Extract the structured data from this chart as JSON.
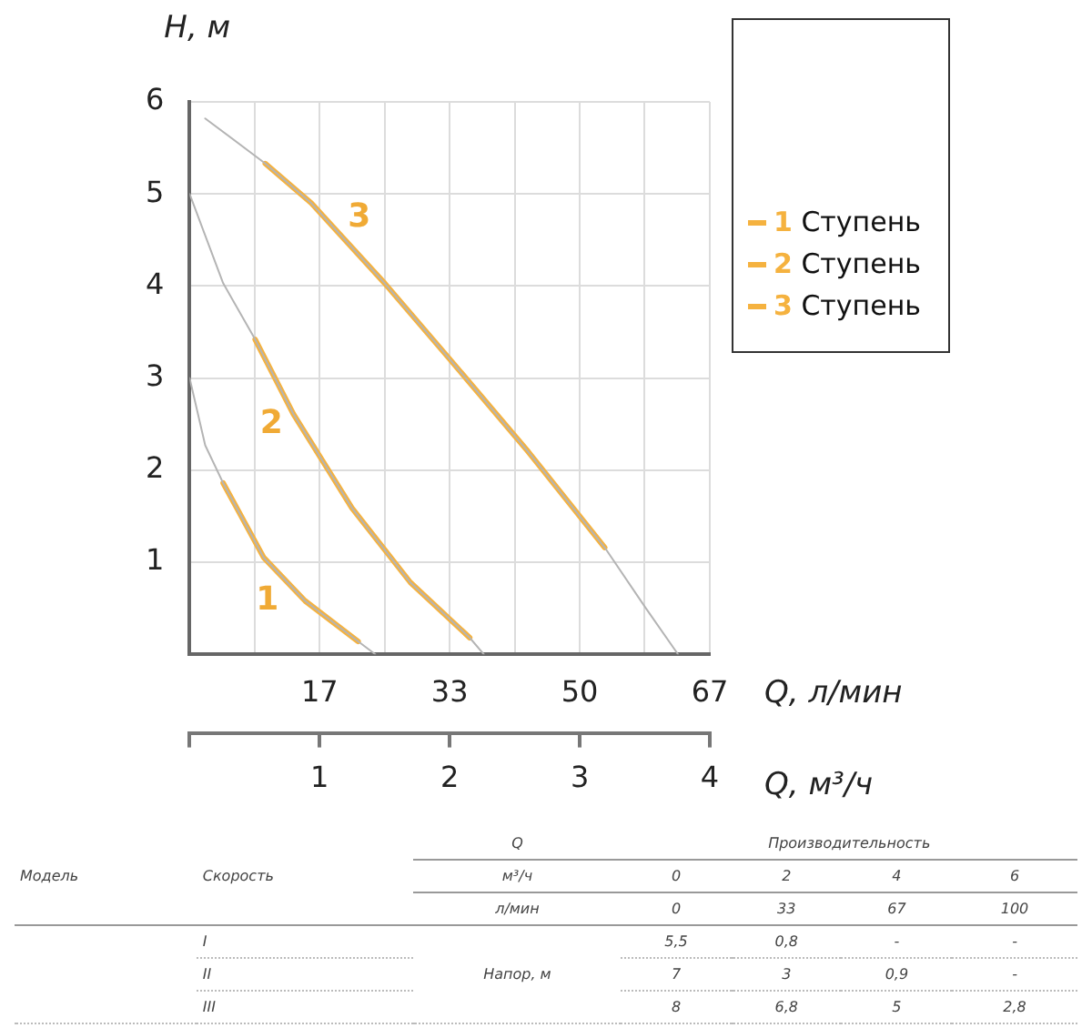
{
  "chart_data": {
    "type": "line",
    "xlabel": "Q, л/мин",
    "x2label": "Q, м³/ч",
    "ylabel": "H, м",
    "xlim": [
      0,
      66.67
    ],
    "xticks": [
      {
        "value": 0,
        "label": null
      },
      {
        "value": 8.33,
        "label": null
      },
      {
        "value": 16.67,
        "label": "17"
      },
      {
        "value": 25,
        "label": null
      },
      {
        "value": 33.33,
        "label": "33"
      },
      {
        "value": 41.67,
        "label": null
      },
      {
        "value": 50,
        "label": "50"
      },
      {
        "value": 58.33,
        "label": null
      },
      {
        "value": 66.67,
        "label": "67"
      }
    ],
    "x2lim": [
      0,
      4
    ],
    "x2ticks": [
      {
        "value": 0,
        "label": null
      },
      1,
      2,
      3,
      4
    ],
    "ylim": [
      0,
      6
    ],
    "yticks": [
      {
        "value": 0,
        "label": null
      },
      1,
      2,
      3,
      4,
      5,
      6
    ],
    "grid": true,
    "legend": "top right",
    "series": [
      {
        "color": "#b4b4b4",
        "x": [
          0,
          2.0,
          4.3,
          9.5,
          14.8,
          21.6,
          23.8
        ],
        "values": [
          3.0,
          2.27,
          1.86,
          1.05,
          0.58,
          0.14,
          0
        ]
      },
      {
        "color": "#b4b4b4",
        "x": [
          0,
          4.3,
          8.4,
          13.3,
          20.8,
          28.3,
          35.9,
          37.7
        ],
        "values": [
          5.0,
          4.03,
          3.42,
          2.61,
          1.59,
          0.78,
          0.18,
          0
        ]
      },
      {
        "color": "#b4b4b4",
        "x": [
          2.0,
          9.7,
          15.6,
          25,
          33.2,
          43.4,
          53.2,
          58.4,
          62.6
        ],
        "values": [
          5.82,
          5.33,
          4.9,
          4.03,
          3.22,
          2.2,
          1.16,
          0.51,
          0
        ]
      },
      {
        "name": "1 Ступень",
        "color": "#f5b23f",
        "x": [
          4.3,
          9.5,
          14.8,
          21.6
        ],
        "values": [
          1.86,
          1.05,
          0.58,
          0.14
        ]
      },
      {
        "name": "2 Ступень",
        "color": "#f5b23f",
        "x": [
          8.4,
          13.3,
          20.8,
          28.3,
          35.9
        ],
        "values": [
          3.42,
          2.61,
          1.59,
          0.78,
          0.18
        ]
      },
      {
        "name": "3 Ступень",
        "color": "#f5b23f",
        "x": [
          9.7,
          15.6,
          25,
          33.2,
          43.4,
          53.2
        ],
        "values": [
          5.33,
          4.9,
          4.03,
          3.22,
          2.2,
          1.16
        ]
      }
    ],
    "annotations": [
      {
        "text": "1",
        "x": 9.5,
        "y": 1.05
      },
      {
        "text": "2",
        "x": 13.3,
        "y": 2.61
      },
      {
        "text": "3",
        "x": 25,
        "y": 4.03
      },
      "Модель",
      "Скорость",
      "Q",
      "Производительность",
      "м³/ч",
      "0",
      "2",
      "4",
      "6",
      "л/мин",
      "0",
      "33",
      "67",
      "100",
      "I",
      "Напор, м",
      "5,5",
      "0,8",
      "-",
      "-",
      "II",
      "7",
      "3",
      "0,9",
      "-",
      "III",
      "8",
      "6,8",
      "5",
      "2,8"
    ]
  }
}
